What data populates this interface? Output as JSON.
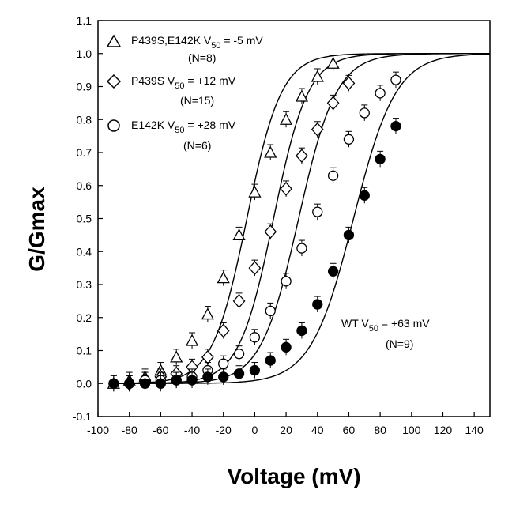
{
  "chart_data": {
    "type": "scatter",
    "title": "",
    "xlabel": "Voltage (mV)",
    "ylabel": "G/Gmax",
    "xlim": [
      -100,
      150
    ],
    "ylim": [
      -0.1,
      1.1
    ],
    "xticks": [
      "-100",
      "-80",
      "-60",
      "-40",
      "-20",
      "0",
      "20",
      "40",
      "60",
      "80",
      "100",
      "120",
      "140"
    ],
    "yticks": [
      "-0.1",
      "0.0",
      "0.1",
      "0.2",
      "0.3",
      "0.4",
      "0.5",
      "0.6",
      "0.7",
      "0.8",
      "0.9",
      "1.0",
      "1.1"
    ],
    "grid": false,
    "legend_position": "top-left",
    "series": [
      {
        "legend_main": "P439S,E142K V",
        "legend_sub": "50",
        "legend_tail": " = -5 mV",
        "legend_n": "(N=8)",
        "marker": "triangle",
        "fill": "none",
        "v50": -5,
        "slope": 11,
        "x": [
          -90,
          -80,
          -70,
          -60,
          -50,
          -40,
          -30,
          -20,
          -10,
          0,
          10,
          20,
          30,
          40,
          50
        ],
        "y": [
          0.0,
          0.01,
          0.02,
          0.04,
          0.08,
          0.13,
          0.21,
          0.32,
          0.45,
          0.58,
          0.7,
          0.8,
          0.87,
          0.93,
          0.97
        ]
      },
      {
        "legend_main": "P439S V",
        "legend_sub": "50",
        "legend_tail": " = +12 mV",
        "legend_n": "(N=15)",
        "marker": "diamond",
        "fill": "none",
        "v50": 12,
        "slope": 11,
        "x": [
          -80,
          -70,
          -60,
          -50,
          -40,
          -30,
          -20,
          -10,
          0,
          10,
          20,
          30,
          40,
          50,
          60
        ],
        "y": [
          0.0,
          0.01,
          0.02,
          0.03,
          0.05,
          0.08,
          0.16,
          0.25,
          0.35,
          0.46,
          0.59,
          0.69,
          0.77,
          0.85,
          0.91
        ]
      },
      {
        "legend_main": "E142K V",
        "legend_sub": "50",
        "legend_tail": " = +28 mV",
        "legend_n": "(N=6)",
        "marker": "circle",
        "fill": "none",
        "v50": 28,
        "slope": 12,
        "x": [
          -80,
          -70,
          -60,
          -50,
          -40,
          -30,
          -20,
          -10,
          0,
          10,
          20,
          30,
          40,
          50,
          60,
          70,
          80,
          90
        ],
        "y": [
          0.0,
          0.01,
          0.01,
          0.01,
          0.02,
          0.04,
          0.06,
          0.09,
          0.14,
          0.22,
          0.31,
          0.41,
          0.52,
          0.63,
          0.74,
          0.82,
          0.88,
          0.92
        ]
      },
      {
        "legend_main": "WT V",
        "legend_sub": "50",
        "legend_tail": " = +63 mV",
        "legend_n": "(N=9)",
        "marker": "circle",
        "fill": "black",
        "v50": 63,
        "slope": 13.5,
        "x": [
          -90,
          -80,
          -70,
          -60,
          -50,
          -40,
          -30,
          -20,
          -10,
          0,
          10,
          20,
          30,
          40,
          50,
          60,
          70,
          80,
          90
        ],
        "y": [
          0.0,
          0.0,
          0.0,
          0.0,
          0.01,
          0.01,
          0.02,
          0.02,
          0.03,
          0.04,
          0.07,
          0.11,
          0.16,
          0.24,
          0.34,
          0.45,
          0.57,
          0.68,
          0.78
        ]
      }
    ]
  }
}
